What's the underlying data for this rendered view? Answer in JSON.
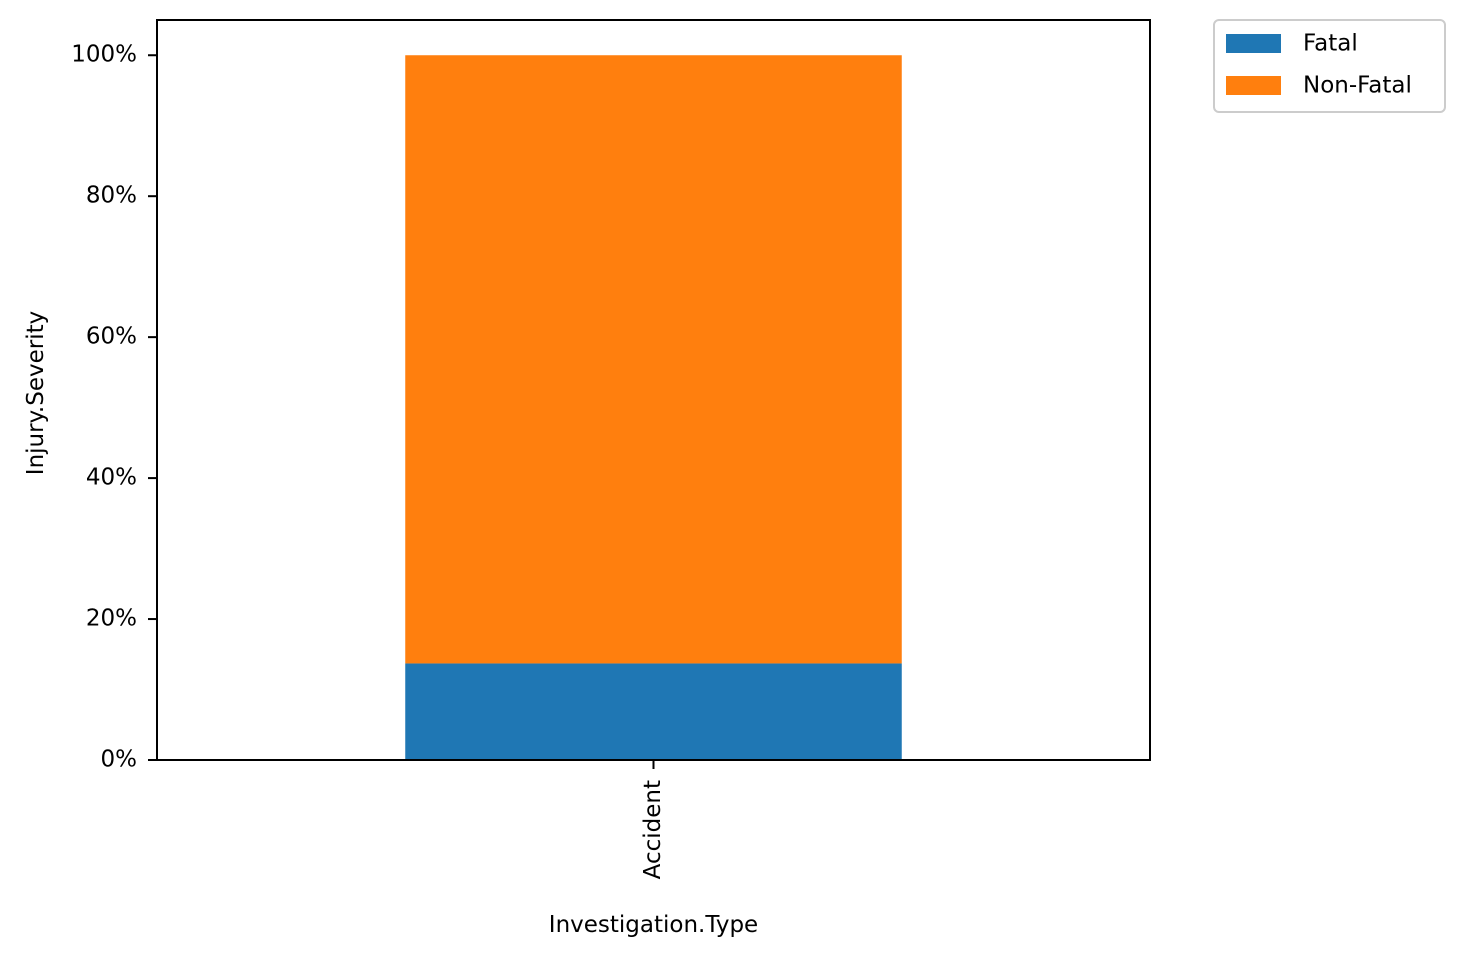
{
  "chart_data": {
    "type": "bar",
    "stacked": true,
    "title": "",
    "xlabel": "Investigation.Type",
    "ylabel": "Injury.Severity",
    "categories": [
      "Accident"
    ],
    "series": [
      {
        "name": "Fatal",
        "values": [
          0.137
        ],
        "color": "#1f77b4"
      },
      {
        "name": "Non-Fatal",
        "values": [
          0.863
        ],
        "color": "#ff7f0e"
      }
    ],
    "ylim": [
      0,
      1.05
    ],
    "yticks": [
      0,
      0.2,
      0.4,
      0.6,
      0.8,
      1.0
    ],
    "ytick_labels": [
      "0%",
      "20%",
      "40%",
      "60%",
      "80%",
      "100%"
    ],
    "xtick_rotation": -90,
    "grid": false,
    "legend_position": "outside-top-right"
  }
}
